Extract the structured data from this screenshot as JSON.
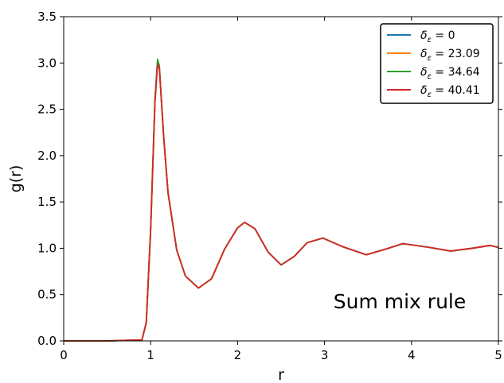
{
  "chart_data": {
    "type": "line",
    "title": "",
    "xlabel": "r",
    "ylabel": "g(r)",
    "xlim": [
      0,
      5
    ],
    "ylim": [
      0,
      3.5
    ],
    "x_ticks": [
      "0",
      "1",
      "2",
      "3",
      "4",
      "5"
    ],
    "y_ticks": [
      "0.0",
      "0.5",
      "1.0",
      "1.5",
      "2.0",
      "2.5",
      "3.0",
      "3.5"
    ],
    "grid": false,
    "legend_position": "top-right",
    "annotation": "Sum mix rule",
    "series": [
      {
        "name": "δ_ε = 0",
        "legend": {
          "symbol": "δ",
          "subscript": "ε",
          "rest": " = 0"
        },
        "color": "#1f77b4",
        "x": [
          0,
          0.5,
          0.9,
          0.95,
          1.0,
          1.05,
          1.08,
          1.1,
          1.15,
          1.2,
          1.3,
          1.4,
          1.55,
          1.7,
          1.85,
          2.0,
          2.08,
          2.2,
          2.35,
          2.5,
          2.65,
          2.8,
          2.98,
          3.2,
          3.48,
          3.7,
          3.9,
          4.2,
          4.45,
          4.7,
          4.9,
          5.0
        ],
        "y": [
          0,
          0,
          0.01,
          0.2,
          1.2,
          2.6,
          3.03,
          2.96,
          2.2,
          1.6,
          0.98,
          0.7,
          0.57,
          0.67,
          0.99,
          1.22,
          1.28,
          1.21,
          0.96,
          0.82,
          0.91,
          1.06,
          1.11,
          1.02,
          0.93,
          0.99,
          1.05,
          1.01,
          0.97,
          1.0,
          1.03,
          1.01
        ]
      },
      {
        "name": "δ_ε = 23.09",
        "legend": {
          "symbol": "δ",
          "subscript": "ε",
          "rest": " = 23.09"
        },
        "color": "#ff7f0e",
        "x": [
          0,
          0.5,
          0.9,
          0.95,
          1.0,
          1.05,
          1.08,
          1.1,
          1.15,
          1.2,
          1.3,
          1.4,
          1.55,
          1.7,
          1.85,
          2.0,
          2.08,
          2.2,
          2.35,
          2.5,
          2.65,
          2.8,
          2.98,
          3.2,
          3.48,
          3.7,
          3.9,
          4.2,
          4.45,
          4.7,
          4.9,
          5.0
        ],
        "y": [
          0,
          0,
          0.01,
          0.2,
          1.2,
          2.6,
          3.02,
          2.95,
          2.2,
          1.6,
          0.98,
          0.7,
          0.57,
          0.67,
          0.99,
          1.22,
          1.28,
          1.21,
          0.96,
          0.82,
          0.91,
          1.06,
          1.11,
          1.02,
          0.93,
          0.99,
          1.05,
          1.01,
          0.97,
          1.0,
          1.03,
          1.01
        ]
      },
      {
        "name": "δ_ε = 34.64",
        "legend": {
          "symbol": "δ",
          "subscript": "ε",
          "rest": " = 34.64"
        },
        "color": "#2ca02c",
        "x": [
          0,
          0.5,
          0.9,
          0.95,
          1.0,
          1.05,
          1.08,
          1.1,
          1.15,
          1.2,
          1.3,
          1.4,
          1.55,
          1.7,
          1.85,
          2.0,
          2.08,
          2.2,
          2.35,
          2.5,
          2.65,
          2.8,
          2.98,
          3.2,
          3.48,
          3.7,
          3.9,
          4.2,
          4.45,
          4.7,
          4.9,
          5.0
        ],
        "y": [
          0,
          0,
          0.01,
          0.2,
          1.2,
          2.62,
          3.04,
          2.97,
          2.2,
          1.6,
          0.98,
          0.7,
          0.57,
          0.67,
          0.99,
          1.22,
          1.28,
          1.21,
          0.96,
          0.82,
          0.91,
          1.06,
          1.11,
          1.02,
          0.93,
          0.99,
          1.05,
          1.01,
          0.97,
          1.0,
          1.03,
          1.01
        ]
      },
      {
        "name": "δ_ε = 40.41",
        "legend": {
          "symbol": "δ",
          "subscript": "ε",
          "rest": " = 40.41"
        },
        "color": "#d62728",
        "x": [
          0,
          0.5,
          0.9,
          0.95,
          1.0,
          1.05,
          1.08,
          1.1,
          1.15,
          1.2,
          1.3,
          1.4,
          1.55,
          1.7,
          1.85,
          2.0,
          2.08,
          2.2,
          2.35,
          2.5,
          2.65,
          2.8,
          2.98,
          3.2,
          3.48,
          3.7,
          3.9,
          4.2,
          4.45,
          4.7,
          4.9,
          5.0
        ],
        "y": [
          0,
          0,
          0.01,
          0.2,
          1.2,
          2.58,
          2.99,
          2.94,
          2.2,
          1.6,
          0.98,
          0.7,
          0.57,
          0.67,
          0.99,
          1.22,
          1.28,
          1.21,
          0.96,
          0.82,
          0.91,
          1.06,
          1.11,
          1.02,
          0.93,
          0.99,
          1.05,
          1.01,
          0.97,
          1.0,
          1.03,
          1.01
        ]
      }
    ]
  }
}
